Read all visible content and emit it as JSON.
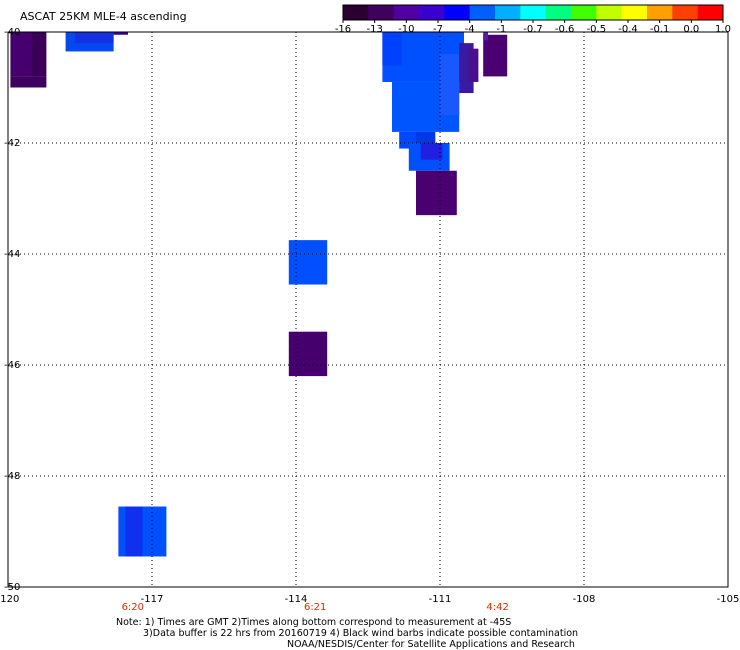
{
  "title": "ASCAT 25KM MLE-4 ascending",
  "colorbar": {
    "tick_labels": [
      "-16",
      "-13",
      "-10",
      "-7",
      "-4",
      "-1",
      "-0.7",
      "-0.6",
      "-0.5",
      "-0.4",
      "-0.1",
      "0.0",
      "1.0"
    ],
    "colors": [
      "#2a0030",
      "#3f0060",
      "#5000a0",
      "#3a00d0",
      "#0000ff",
      "#0060ff",
      "#00b0ff",
      "#00ffff",
      "#00ff80",
      "#40ff00",
      "#c0ff00",
      "#ffff00",
      "#ffa000",
      "#ff4000",
      "#ff0000"
    ]
  },
  "map": {
    "lon_range": [
      -120,
      -105
    ],
    "lat_range": [
      -50,
      -40
    ],
    "lon_ticks": [
      {
        "value": -120,
        "label": "-120"
      },
      {
        "value": -117,
        "label": "-117"
      },
      {
        "value": -114,
        "label": "-114"
      },
      {
        "value": -111,
        "label": "-111"
      },
      {
        "value": -108,
        "label": "-108"
      },
      {
        "value": -105,
        "label": "-105"
      }
    ],
    "lat_ticks": [
      {
        "value": -40,
        "label": "-40"
      },
      {
        "value": -42,
        "label": "-42"
      },
      {
        "value": -44,
        "label": "-44"
      },
      {
        "value": -46,
        "label": "-46"
      },
      {
        "value": -48,
        "label": "-48"
      },
      {
        "value": -50,
        "label": "-50"
      }
    ],
    "grid": true,
    "time_labels": [
      {
        "lon": -117.4,
        "text": "6:20"
      },
      {
        "lon": -113.6,
        "text": "6:21"
      },
      {
        "lon": -109.8,
        "text": "4:42"
      }
    ],
    "time_color": "#d03000",
    "cells": [
      {
        "lon0": -119.95,
        "lon1": -119.5,
        "lat0": -40.0,
        "lat1": -40.8,
        "color": "#46006e"
      },
      {
        "lon0": -119.95,
        "lon1": -119.2,
        "lat0": -40.8,
        "lat1": -41.0,
        "color": "#3e005e"
      },
      {
        "lon0": -119.5,
        "lon1": -119.2,
        "lat0": -40.0,
        "lat1": -40.8,
        "color": "#3a0058"
      },
      {
        "lon0": -118.8,
        "lon1": -117.8,
        "lat0": -40.0,
        "lat1": -40.35,
        "color": "#0048f0"
      },
      {
        "lon0": -118.6,
        "lon1": -117.8,
        "lat0": -40.0,
        "lat1": -40.2,
        "color": "#1530e0"
      },
      {
        "lon0": -117.8,
        "lon1": -117.5,
        "lat0": -40.0,
        "lat1": -40.05,
        "color": "#3a00a0"
      },
      {
        "lon0": -112.2,
        "lon1": -110.5,
        "lat0": -40.0,
        "lat1": -40.9,
        "color": "#0050ff"
      },
      {
        "lon0": -112.2,
        "lon1": -111.8,
        "lat0": -40.0,
        "lat1": -40.6,
        "color": "#0040ff"
      },
      {
        "lon0": -112.0,
        "lon1": -110.6,
        "lat0": -40.9,
        "lat1": -41.8,
        "color": "#0055ff"
      },
      {
        "lon0": -111.0,
        "lon1": -110.6,
        "lat0": -40.4,
        "lat1": -41.5,
        "color": "#1a58ff"
      },
      {
        "lon0": -111.85,
        "lon1": -111.1,
        "lat0": -41.8,
        "lat1": -42.1,
        "color": "#0048ff"
      },
      {
        "lon0": -111.5,
        "lon1": -111.1,
        "lat0": -41.8,
        "lat1": -42.1,
        "color": "#0038e8"
      },
      {
        "lon0": -111.65,
        "lon1": -110.8,
        "lat0": -42.0,
        "lat1": -42.5,
        "color": "#0050ff"
      },
      {
        "lon0": -111.4,
        "lon1": -110.95,
        "lat0": -42.0,
        "lat1": -42.3,
        "color": "#2020e0"
      },
      {
        "lon0": -110.6,
        "lon1": -110.3,
        "lat0": -40.2,
        "lat1": -41.1,
        "color": "#3a1aa0"
      },
      {
        "lon0": -110.4,
        "lon1": -110.2,
        "lat0": -40.3,
        "lat1": -40.9,
        "color": "#48108a"
      },
      {
        "lon0": -110.1,
        "lon1": -109.6,
        "lat0": -40.05,
        "lat1": -40.8,
        "color": "#4a0070"
      },
      {
        "lon0": -110.1,
        "lon1": -110.0,
        "lat0": -40.0,
        "lat1": -40.15,
        "color": "#5020a0"
      },
      {
        "lon0": -111.5,
        "lon1": -110.65,
        "lat0": -42.5,
        "lat1": -43.3,
        "color": "#4a0070"
      },
      {
        "lon0": -114.15,
        "lon1": -113.35,
        "lat0": -43.75,
        "lat1": -44.55,
        "color": "#0050ff"
      },
      {
        "lon0": -114.15,
        "lon1": -113.35,
        "lat0": -45.4,
        "lat1": -46.2,
        "color": "#46006e"
      },
      {
        "lon0": -117.7,
        "lon1": -116.7,
        "lat0": -48.55,
        "lat1": -49.45,
        "color": "#0050ff"
      },
      {
        "lon0": -117.55,
        "lon1": -117.2,
        "lat0": -48.55,
        "lat1": -49.45,
        "color": "#1030f0"
      }
    ]
  },
  "notes": [
    "Note: 1) Times are GMT 2)Times along bottom correspond to measurement at -45S",
    "3)Data buffer is 22 hrs from 20160719 4) Black wind barbs indicate possible contamination",
    "NOAA/NESDIS/Center for Satellite Applications and Research"
  ]
}
